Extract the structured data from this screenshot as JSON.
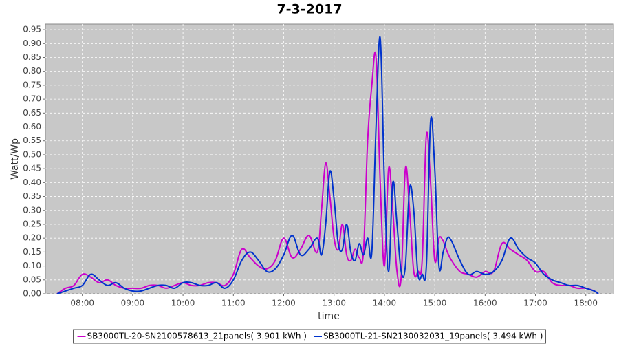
{
  "chart_data": {
    "type": "line",
    "title": "7-3-2017",
    "x_label": "time",
    "y_label": "Watt/Wp",
    "x": [
      "07:30",
      "07:40",
      "07:50",
      "08:00",
      "08:10",
      "08:20",
      "08:30",
      "08:40",
      "08:50",
      "09:00",
      "09:10",
      "09:20",
      "09:30",
      "09:40",
      "09:50",
      "10:00",
      "10:10",
      "10:20",
      "10:30",
      "10:40",
      "10:50",
      "11:00",
      "11:10",
      "11:20",
      "11:30",
      "11:40",
      "11:50",
      "12:00",
      "12:10",
      "12:20",
      "12:30",
      "12:40",
      "12:45",
      "12:50",
      "12:55",
      "13:00",
      "13:05",
      "13:10",
      "13:15",
      "13:20",
      "13:25",
      "13:30",
      "13:35",
      "13:40",
      "13:45",
      "13:50",
      "13:55",
      "14:00",
      "14:05",
      "14:10",
      "14:15",
      "14:20",
      "14:25",
      "14:30",
      "14:35",
      "14:40",
      "14:45",
      "14:50",
      "14:55",
      "15:00",
      "15:05",
      "15:10",
      "15:15",
      "15:20",
      "15:30",
      "15:40",
      "15:50",
      "16:00",
      "16:10",
      "16:20",
      "16:30",
      "16:40",
      "16:50",
      "17:00",
      "17:10",
      "17:20",
      "17:30",
      "17:40",
      "17:50",
      "18:00",
      "18:10",
      "18:15"
    ],
    "series": [
      {
        "name": "SB3000TL-20-SN2100578613_21panels( 3.901 kWh )",
        "color": "#cc00cc",
        "values": [
          0,
          0.02,
          0.03,
          0.07,
          0.06,
          0.04,
          0.05,
          0.03,
          0.02,
          0.02,
          0.02,
          0.03,
          0.03,
          0.02,
          0.03,
          0.04,
          0.03,
          0.03,
          0.04,
          0.04,
          0.03,
          0.07,
          0.16,
          0.13,
          0.1,
          0.09,
          0.12,
          0.2,
          0.13,
          0.16,
          0.21,
          0.15,
          0.3,
          0.47,
          0.35,
          0.2,
          0.16,
          0.25,
          0.14,
          0.12,
          0.16,
          0.13,
          0.15,
          0.55,
          0.75,
          0.85,
          0.4,
          0.1,
          0.45,
          0.3,
          0.08,
          0.06,
          0.45,
          0.3,
          0.08,
          0.08,
          0.12,
          0.57,
          0.4,
          0.12,
          0.2,
          0.19,
          0.15,
          0.12,
          0.08,
          0.07,
          0.06,
          0.08,
          0.08,
          0.18,
          0.16,
          0.14,
          0.12,
          0.08,
          0.08,
          0.04,
          0.03,
          0.03,
          0.02,
          0.02,
          0.01,
          0
        ]
      },
      {
        "name": "SB3000TL-21-SN2130032031_19panels( 3.494 kWh )",
        "color": "#0033cc",
        "values": [
          0,
          0.01,
          0.02,
          0.03,
          0.07,
          0.05,
          0.03,
          0.04,
          0.02,
          0.01,
          0.01,
          0.02,
          0.03,
          0.03,
          0.02,
          0.04,
          0.04,
          0.03,
          0.03,
          0.04,
          0.02,
          0.05,
          0.12,
          0.15,
          0.12,
          0.08,
          0.09,
          0.14,
          0.21,
          0.14,
          0.16,
          0.2,
          0.14,
          0.25,
          0.44,
          0.34,
          0.18,
          0.16,
          0.25,
          0.15,
          0.12,
          0.18,
          0.14,
          0.2,
          0.15,
          0.6,
          0.92,
          0.4,
          0.08,
          0.4,
          0.25,
          0.08,
          0.1,
          0.38,
          0.3,
          0.07,
          0.07,
          0.1,
          0.62,
          0.45,
          0.1,
          0.15,
          0.2,
          0.19,
          0.12,
          0.07,
          0.08,
          0.07,
          0.08,
          0.12,
          0.2,
          0.16,
          0.13,
          0.11,
          0.07,
          0.05,
          0.04,
          0.03,
          0.03,
          0.02,
          0.01,
          0
        ]
      }
    ],
    "xlim": [
      "07:16",
      "18:33"
    ],
    "xticks": [
      "08:00",
      "09:00",
      "10:00",
      "11:00",
      "12:00",
      "13:00",
      "14:00",
      "15:00",
      "16:00",
      "17:00",
      "18:00"
    ],
    "ylim": [
      0,
      0.97
    ],
    "yticks": [
      {
        "value": 0,
        "label": "0.00"
      },
      {
        "value": 0.05,
        "label": "0.05"
      },
      {
        "value": 0.1,
        "label": "0.10"
      },
      {
        "value": 0.15,
        "label": "0.15"
      },
      {
        "value": 0.2,
        "label": "0.20"
      },
      {
        "value": 0.25,
        "label": "0.25"
      },
      {
        "value": 0.3,
        "label": "0.30"
      },
      {
        "value": 0.35,
        "label": "0.35"
      },
      {
        "value": 0.4,
        "label": "0.40"
      },
      {
        "value": 0.45,
        "label": "0.45"
      },
      {
        "value": 0.5,
        "label": "0.50"
      },
      {
        "value": 0.55,
        "label": "0.55"
      },
      {
        "value": 0.6,
        "label": "0.60"
      },
      {
        "value": 0.65,
        "label": "0.65"
      },
      {
        "value": 0.7,
        "label": "0.70"
      },
      {
        "value": 0.75,
        "label": "0.75"
      },
      {
        "value": 0.8,
        "label": "0.80"
      },
      {
        "value": 0.85,
        "label": "0.85"
      },
      {
        "value": 0.9,
        "label": "0.90"
      },
      {
        "value": 0.95,
        "label": "0.95"
      }
    ],
    "grid": true
  }
}
